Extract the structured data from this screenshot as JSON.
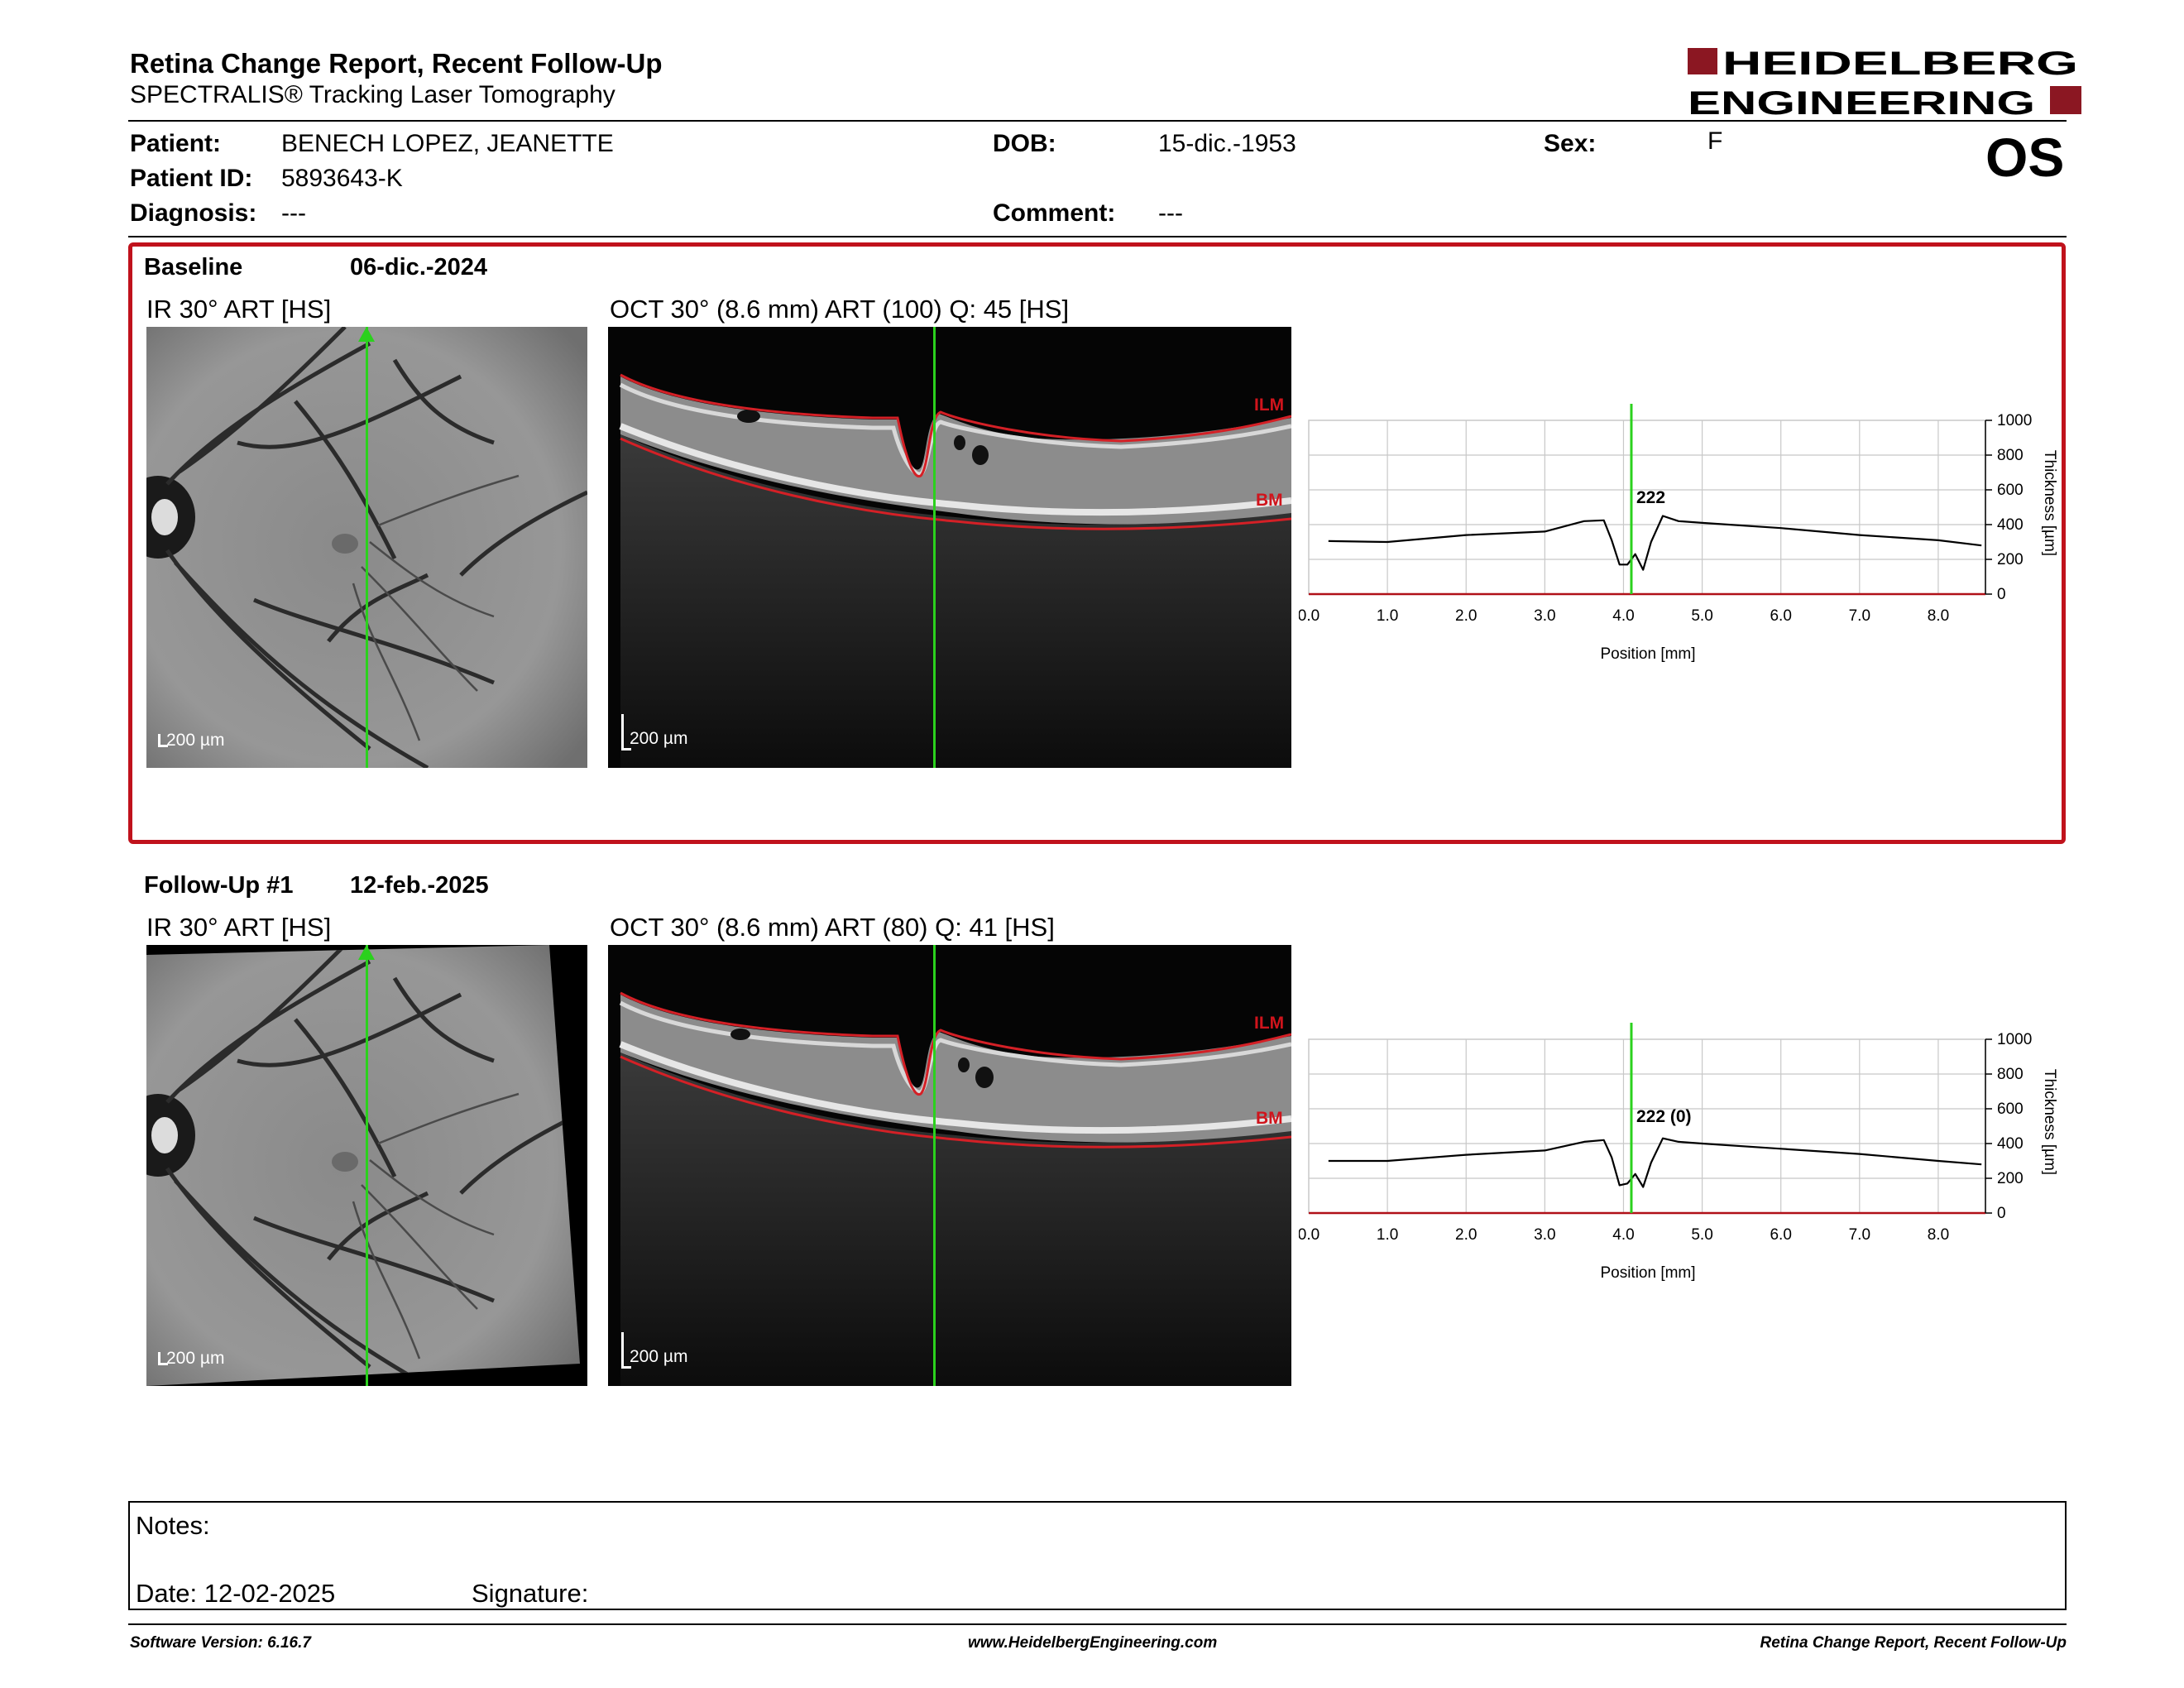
{
  "header": {
    "title": "Retina Change Report, Recent Follow-Up",
    "subtitle": "SPECTRALIS® Tracking Laser Tomography",
    "logo_line1": "HEIDELBERG",
    "logo_line2": "ENGINEERING",
    "brand_color": "#8b1722"
  },
  "patient": {
    "patient_label": "Patient:",
    "patient_value": "BENECH LOPEZ, JEANETTE",
    "id_label": "Patient ID:",
    "id_value": "5893643-K",
    "diagnosis_label": "Diagnosis:",
    "diagnosis_value": "---",
    "dob_label": "DOB:",
    "dob_value": "15-dic.-1953",
    "comment_label": "Comment:",
    "comment_value": "---",
    "sex_label": "Sex:",
    "sex_value": "F",
    "eye": "OS"
  },
  "baseline": {
    "label": "Baseline",
    "date": "06-dic.-2024",
    "ir_caption": "IR 30° ART [HS]",
    "oct_caption": "OCT 30° (8.6 mm) ART (100) Q: 45 [HS]",
    "ir_scale": "200 µm",
    "oct_scale": "200 µm",
    "ilm_label": "ILM",
    "bm_label": "BM",
    "frame_color": "#c0121c"
  },
  "followup": {
    "label": "Follow-Up #1",
    "date": "12-feb.-2025",
    "ir_caption": "IR 30° ART [HS]",
    "oct_caption": "OCT 30° (8.6 mm) ART (80) Q: 41 [HS]",
    "ir_scale": "200 µm",
    "oct_scale": "200 µm",
    "ilm_label": "ILM",
    "bm_label": "BM"
  },
  "chart_data": [
    {
      "type": "line",
      "xlabel": "Position [mm]",
      "ylabel": "Thickness [µm]",
      "xlim": [
        0,
        8.6
      ],
      "ylim": [
        0,
        1000
      ],
      "x_ticks": [
        "0.0",
        "1.0",
        "2.0",
        "3.0",
        "4.0",
        "5.0",
        "6.0",
        "7.0",
        "8.0"
      ],
      "y_ticks": [
        "0",
        "200",
        "400",
        "600",
        "800",
        "1000"
      ],
      "grid": true,
      "marker_x": 4.1,
      "marker_label": "222",
      "series": [
        {
          "color": "#000000",
          "x": [
            0.25,
            1.0,
            2.0,
            3.0,
            3.5,
            3.75,
            3.85,
            3.95,
            4.05,
            4.15,
            4.25,
            4.35,
            4.5,
            4.7,
            5.0,
            6.0,
            7.0,
            8.0,
            8.55
          ],
          "y": [
            305,
            300,
            340,
            360,
            420,
            425,
            310,
            170,
            170,
            230,
            140,
            300,
            450,
            420,
            410,
            380,
            340,
            310,
            280
          ]
        }
      ]
    },
    {
      "type": "line",
      "xlabel": "Position [mm]",
      "ylabel": "Thickness [µm]",
      "xlim": [
        0,
        8.6
      ],
      "ylim": [
        0,
        1000
      ],
      "x_ticks": [
        "0.0",
        "1.0",
        "2.0",
        "3.0",
        "4.0",
        "5.0",
        "6.0",
        "7.0",
        "8.0"
      ],
      "y_ticks": [
        "0",
        "200",
        "400",
        "600",
        "800",
        "1000"
      ],
      "grid": true,
      "marker_x": 4.1,
      "marker_label": "222 (0)",
      "series": [
        {
          "color": "#000000",
          "x": [
            0.25,
            1.0,
            2.0,
            3.0,
            3.5,
            3.75,
            3.85,
            3.95,
            4.05,
            4.15,
            4.25,
            4.35,
            4.5,
            4.7,
            5.0,
            6.0,
            7.0,
            8.0,
            8.55
          ],
          "y": [
            300,
            300,
            335,
            360,
            410,
            420,
            320,
            160,
            170,
            225,
            150,
            290,
            430,
            410,
            400,
            370,
            340,
            300,
            280
          ]
        }
      ]
    }
  ],
  "notes": {
    "notes_label": "Notes:",
    "date_label": "Date: 12-02-2025",
    "signature_label": "Signature:"
  },
  "footer": {
    "software": "Software Version: 6.16.7",
    "website": "www.HeidelbergEngineering.com",
    "report_name": "Retina Change Report, Recent Follow-Up"
  }
}
